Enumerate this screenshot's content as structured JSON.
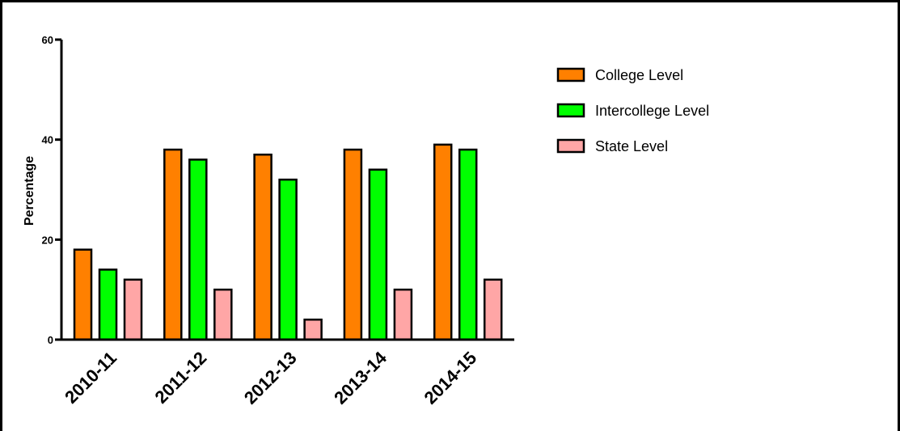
{
  "chart_data": {
    "type": "bar",
    "title": "",
    "xlabel": "",
    "ylabel": "Percentage",
    "ylim": [
      0,
      60
    ],
    "yticks": [
      0,
      20,
      40,
      60
    ],
    "categories": [
      "2010-11",
      "2011-12",
      "2012-13",
      "2013-14",
      "2014-15"
    ],
    "series": [
      {
        "name": "College Level",
        "color": "#ff8000",
        "values": [
          18,
          38,
          37,
          38,
          39
        ]
      },
      {
        "name": "Intercollege Level",
        "color": "#00ff00",
        "values": [
          14,
          36,
          32,
          34,
          38
        ]
      },
      {
        "name": "State Level",
        "color": "#ffa6a6",
        "values": [
          12,
          10,
          4,
          10,
          12
        ]
      }
    ],
    "legend_position": "top-right",
    "grid": false
  }
}
